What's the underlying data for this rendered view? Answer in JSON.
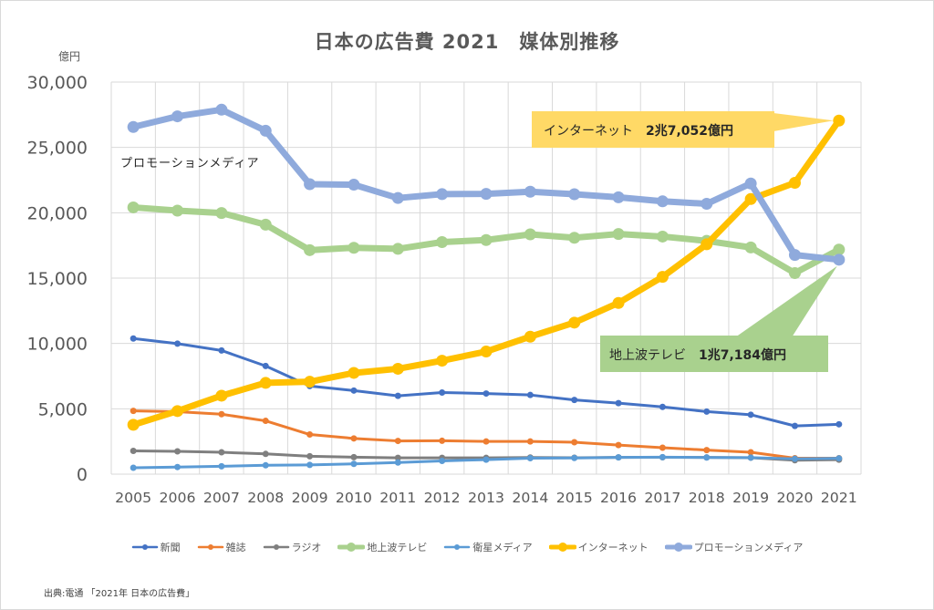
{
  "chart_data": {
    "type": "line",
    "title": "日本の広告費 2021　媒体別推移",
    "ylabel": "億円",
    "xlabel": "",
    "ylim": [
      0,
      30000
    ],
    "yticks": [
      0,
      5000,
      10000,
      15000,
      20000,
      25000,
      30000
    ],
    "ytick_labels": [
      "0",
      "5,000",
      "10,000",
      "15,000",
      "20,000",
      "25,000",
      "30,000"
    ],
    "grid": true,
    "legend_position": "bottom",
    "x": [
      "2005",
      "2006",
      "2007",
      "2008",
      "2009",
      "2010",
      "2011",
      "2012",
      "2013",
      "2014",
      "2015",
      "2016",
      "2017",
      "2018",
      "2019",
      "2020",
      "2021"
    ],
    "series": [
      {
        "name": "新聞",
        "color": "#4472c4",
        "weight": "thin",
        "values": [
          10377,
          9986,
          9462,
          8276,
          6739,
          6396,
          5990,
          6242,
          6170,
          6057,
          5679,
          5431,
          5147,
          4784,
          4547,
          3688,
          3815
        ]
      },
      {
        "name": "雑誌",
        "color": "#ed7d31",
        "weight": "thin",
        "values": [
          4842,
          4777,
          4585,
          4078,
          3034,
          2733,
          2542,
          2551,
          2499,
          2500,
          2443,
          2223,
          2023,
          1841,
          1675,
          1223,
          1224
        ]
      },
      {
        "name": "ラジオ",
        "color": "#7f7f7f",
        "weight": "thin",
        "values": [
          1778,
          1744,
          1671,
          1549,
          1370,
          1299,
          1247,
          1246,
          1243,
          1272,
          1254,
          1285,
          1290,
          1278,
          1260,
          1066,
          1106
        ]
      },
      {
        "name": "地上波テレビ",
        "color": "#a9d18e",
        "weight": "thick",
        "values": [
          20411,
          20161,
          19981,
          19092,
          17139,
          17321,
          17237,
          17757,
          17913,
          18347,
          18088,
          18374,
          18178,
          17848,
          17345,
          15386,
          17184
        ]
      },
      {
        "name": "衛星メディア",
        "color": "#5b9bd5",
        "weight": "thin",
        "values": [
          487,
          544,
          603,
          676,
          709,
          784,
          891,
          1013,
          1110,
          1217,
          1235,
          1283,
          1300,
          1275,
          1267,
          1173,
          1209
        ]
      },
      {
        "name": "インターネット",
        "color": "#ffc000",
        "weight": "thick",
        "values": [
          3777,
          4826,
          6003,
          6983,
          7069,
          7747,
          8062,
          8680,
          9381,
          10519,
          11594,
          13100,
          15094,
          17589,
          21048,
          22290,
          27052
        ]
      },
      {
        "name": "プロモーションメディア",
        "color": "#8faadc",
        "weight": "thick",
        "values": [
          26563,
          27379,
          27886,
          26272,
          22186,
          22147,
          21127,
          21424,
          21446,
          21610,
          21417,
          21184,
          20875,
          20685,
          22239,
          16768,
          16408
        ]
      }
    ],
    "annotations": [
      {
        "text": "プロモーションメディア",
        "color": "#5b9bd5",
        "type": "series-label"
      },
      {
        "text": "インターネット　",
        "value_text": "2兆7,052億円",
        "fill": "#ffd966",
        "points_to": {
          "series": "インターネット",
          "x": "2021"
        }
      },
      {
        "text": "地上波テレビ　",
        "value_text": "1兆7,184億円",
        "fill": "#a9d18e",
        "points_to": {
          "series": "地上波テレビ",
          "x": "2021"
        }
      }
    ]
  },
  "source_note": "出典:電通 「2021年 日本の広告費」"
}
